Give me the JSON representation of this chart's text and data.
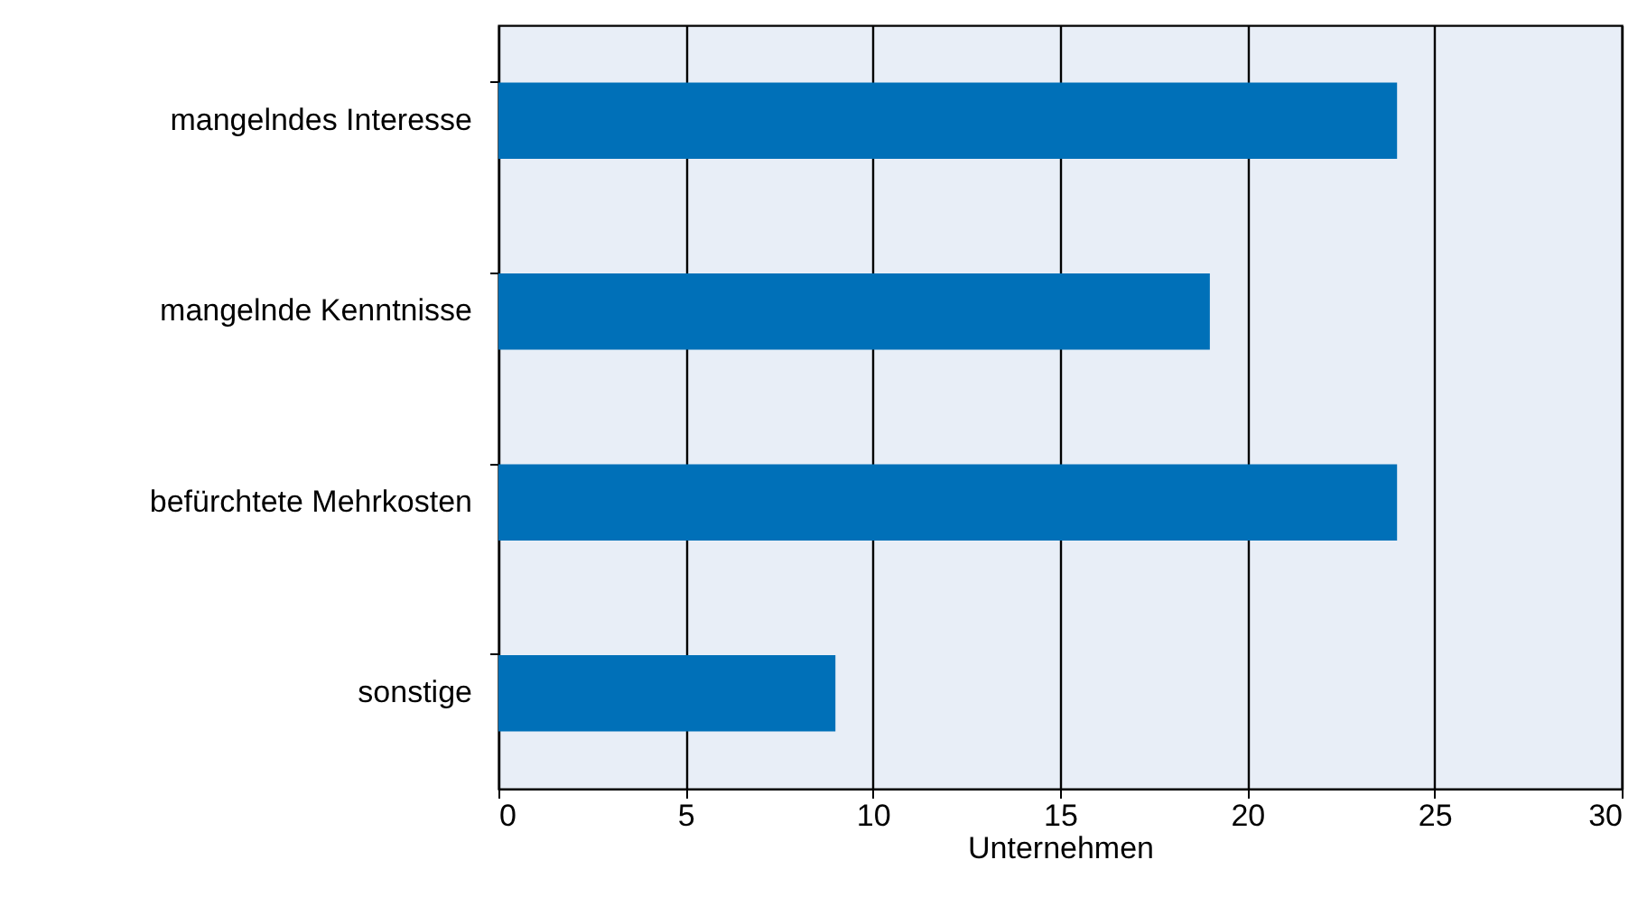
{
  "chart_data": {
    "type": "bar",
    "orientation": "horizontal",
    "categories": [
      "mangelndes Interesse",
      "mangelnde Kenntnisse",
      "befürchtete Mehrkosten",
      "sonstige"
    ],
    "values": [
      24,
      19,
      24,
      9
    ],
    "color": "#0070b8",
    "xlabel": "Unternehmen",
    "xlim": [
      0,
      30
    ],
    "xticks": [
      0,
      5,
      10,
      15,
      20,
      25,
      30
    ],
    "grid": "x"
  }
}
